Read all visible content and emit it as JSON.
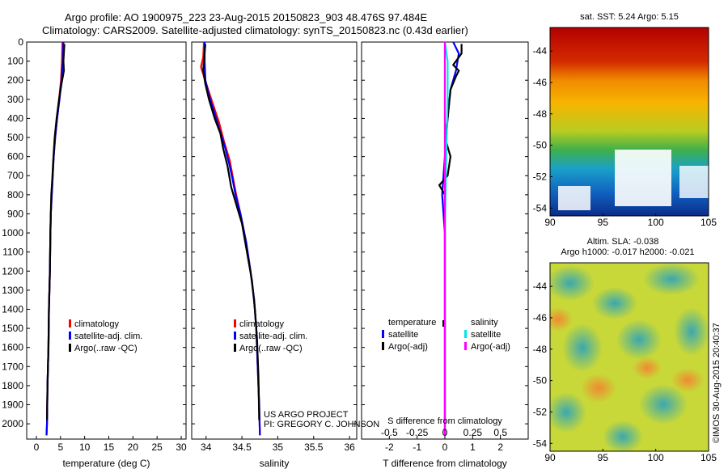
{
  "header": {
    "line1": "Argo profile: AO 1900975_223 23-Aug-2015 20150823_903 48.476S 97.484E",
    "line2": "Climatology: CARS2009. Satellite-adjusted climatology: synTS_20150823.nc (0.43d earlier)"
  },
  "project": {
    "line1": "US ARGO PROJECT",
    "line2": "PI: GREGORY C. JOHNSON"
  },
  "stamp": "©IMOS 30-Aug-2015 20:40:37",
  "colors": {
    "climatology": "#ff0000",
    "satellite_adj": "#0000ff",
    "argo": "#000000",
    "salinity_satellite": "#00e5e5",
    "salinity_argo": "#ff00ff"
  },
  "chart_data": [
    {
      "type": "line",
      "id": "temperature",
      "xlabel": "temperature (deg C)",
      "xlim": [
        -2,
        31
      ],
      "xticks": [
        0,
        5,
        10,
        15,
        20,
        25,
        30
      ],
      "ylim": [
        2080,
        0
      ],
      "yticks": [
        0,
        100,
        200,
        300,
        400,
        500,
        600,
        700,
        800,
        900,
        1000,
        1100,
        1200,
        1300,
        1400,
        1500,
        1600,
        1700,
        1800,
        1900,
        2000
      ],
      "legend": [
        "climatology",
        "satellite-adj. clim.",
        "Argo(..raw -QC)"
      ],
      "series": [
        {
          "name": "climatology",
          "color": "#ff0000",
          "points": [
            [
              5.4,
              0
            ],
            [
              5.3,
              100
            ],
            [
              5.1,
              200
            ],
            [
              4.7,
              300
            ],
            [
              4.3,
              400
            ],
            [
              3.9,
              500
            ],
            [
              3.6,
              600
            ],
            [
              3.4,
              700
            ],
            [
              3.2,
              800
            ],
            [
              3.0,
              900
            ],
            [
              2.9,
              1000
            ],
            [
              2.8,
              1200
            ],
            [
              2.6,
              1400
            ],
            [
              2.5,
              1600
            ],
            [
              2.3,
              1800
            ],
            [
              2.2,
              2000
            ],
            [
              2.1,
              2060
            ]
          ]
        },
        {
          "name": "satellite-adj. clim.",
          "color": "#0000ff",
          "points": [
            [
              5.6,
              0
            ],
            [
              5.5,
              100
            ],
            [
              5.2,
              200
            ],
            [
              4.8,
              300
            ],
            [
              4.3,
              400
            ],
            [
              3.9,
              500
            ],
            [
              3.6,
              600
            ],
            [
              3.4,
              700
            ],
            [
              3.2,
              800
            ],
            [
              3.0,
              900
            ],
            [
              2.9,
              1000
            ],
            [
              2.8,
              1200
            ],
            [
              2.6,
              1400
            ],
            [
              2.5,
              1600
            ],
            [
              2.3,
              1800
            ],
            [
              2.2,
              2000
            ],
            [
              2.1,
              2060
            ]
          ]
        },
        {
          "name": "Argo(..raw -QC)",
          "color": "#000000",
          "points": [
            [
              5.8,
              10
            ],
            [
              5.6,
              100
            ],
            [
              5.7,
              150
            ],
            [
              5.2,
              220
            ],
            [
              4.7,
              300
            ],
            [
              4.2,
              400
            ],
            [
              3.8,
              500
            ],
            [
              3.5,
              620
            ],
            [
              3.3,
              720
            ],
            [
              3.1,
              800
            ],
            [
              3.0,
              900
            ],
            [
              2.9,
              1000
            ],
            [
              2.8,
              1200
            ],
            [
              2.6,
              1400
            ],
            [
              2.5,
              1600
            ],
            [
              2.3,
              1800
            ],
            [
              2.2,
              1980
            ]
          ]
        }
      ]
    },
    {
      "type": "line",
      "id": "salinity",
      "xlabel": "salinity",
      "xlim": [
        33.8,
        36.1
      ],
      "xticks": [
        34,
        34.5,
        35,
        35.5,
        36
      ],
      "xticklabels": [
        "34",
        "34.5",
        "35",
        "35.5",
        "36"
      ],
      "ylim": [
        2080,
        0
      ],
      "legend": [
        "climatology",
        "satellite-adj. clim.",
        "Argo(..raw -QC)"
      ],
      "series": [
        {
          "name": "climatology",
          "color": "#ff0000",
          "points": [
            [
              33.97,
              0
            ],
            [
              33.96,
              80
            ],
            [
              33.93,
              130
            ],
            [
              33.97,
              180
            ],
            [
              34.03,
              250
            ],
            [
              34.1,
              330
            ],
            [
              34.18,
              420
            ],
            [
              34.25,
              520
            ],
            [
              34.33,
              620
            ],
            [
              34.38,
              720
            ],
            [
              34.42,
              800
            ],
            [
              34.48,
              900
            ],
            [
              34.56,
              1050
            ],
            [
              34.62,
              1200
            ],
            [
              34.67,
              1350
            ],
            [
              34.7,
              1500
            ],
            [
              34.72,
              1700
            ],
            [
              34.74,
              1900
            ],
            [
              34.75,
              2060
            ]
          ]
        },
        {
          "name": "satellite-adj. clim.",
          "color": "#0000ff",
          "points": [
            [
              33.98,
              0
            ],
            [
              33.98,
              100
            ],
            [
              33.99,
              200
            ],
            [
              34.04,
              280
            ],
            [
              34.1,
              350
            ],
            [
              34.18,
              450
            ],
            [
              34.27,
              560
            ],
            [
              34.33,
              650
            ],
            [
              34.37,
              720
            ],
            [
              34.41,
              800
            ],
            [
              34.48,
              900
            ],
            [
              34.56,
              1050
            ],
            [
              34.62,
              1200
            ],
            [
              34.67,
              1350
            ],
            [
              34.7,
              1500
            ],
            [
              34.72,
              1700
            ],
            [
              34.74,
              1900
            ],
            [
              34.75,
              2060
            ]
          ]
        },
        {
          "name": "Argo(..raw -QC)",
          "color": "#000000",
          "points": [
            [
              33.99,
              10
            ],
            [
              33.97,
              100
            ],
            [
              33.96,
              150
            ],
            [
              33.99,
              220
            ],
            [
              34.04,
              300
            ],
            [
              34.12,
              400
            ],
            [
              34.2,
              480
            ],
            [
              34.24,
              560
            ],
            [
              34.3,
              650
            ],
            [
              34.35,
              760
            ],
            [
              34.42,
              850
            ],
            [
              34.5,
              950
            ],
            [
              34.57,
              1100
            ],
            [
              34.64,
              1250
            ],
            [
              34.68,
              1400
            ],
            [
              34.71,
              1550
            ],
            [
              34.73,
              1750
            ],
            [
              34.74,
              1980
            ]
          ]
        }
      ]
    },
    {
      "type": "line",
      "id": "difference",
      "xlabel": "T difference from climatology",
      "xlabel_top": "S difference from climatology",
      "xlim": [
        -3,
        3
      ],
      "xticks": [
        -2,
        -1,
        0,
        1,
        2
      ],
      "xticks_top_labels": [
        "-0.5",
        "-0.25",
        "0",
        "0.25",
        "0.5"
      ],
      "ylim": [
        2080,
        0
      ],
      "legend_left_title": "temperature",
      "legend_right_title": "salinity",
      "legend_left": [
        "satellite",
        "Argo(-adj)"
      ],
      "legend_right": [
        "satellite",
        "Argo(-adj)"
      ],
      "series": [
        {
          "name": "temperature satellite",
          "color": "#0000ff",
          "points": [
            [
              0.3,
              0
            ],
            [
              0.5,
              60
            ],
            [
              0.4,
              150
            ],
            [
              0.2,
              250
            ],
            [
              0.1,
              400
            ],
            [
              0.0,
              600
            ],
            [
              -0.1,
              800
            ],
            [
              0.0,
              1000
            ],
            [
              0.0,
              1400
            ],
            [
              0.0,
              2060
            ]
          ]
        },
        {
          "name": "temperature Argo(-adj)",
          "color": "#000000",
          "points": [
            [
              0.6,
              10
            ],
            [
              0.6,
              60
            ],
            [
              0.3,
              120
            ],
            [
              0.5,
              150
            ],
            [
              0.4,
              180
            ],
            [
              0.2,
              250
            ],
            [
              0.1,
              400
            ],
            [
              0.0,
              500
            ],
            [
              0.2,
              600
            ],
            [
              0.1,
              700
            ],
            [
              -0.2,
              750
            ],
            [
              0.0,
              800
            ],
            [
              0.0,
              1000
            ],
            [
              0.0,
              1400
            ],
            [
              0.0,
              1980
            ]
          ]
        },
        {
          "name": "salinity satellite",
          "color": "#00e5e5",
          "points": [
            [
              0.0,
              0
            ],
            [
              0.1,
              100
            ],
            [
              0.1,
              300
            ],
            [
              0.05,
              600
            ],
            [
              0.0,
              1000
            ],
            [
              0.0,
              1500
            ],
            [
              0.0,
              2060
            ]
          ]
        },
        {
          "name": "salinity Argo(-adj)",
          "color": "#ff00ff",
          "points": [
            [
              0.0,
              0
            ],
            [
              0.0,
              300
            ],
            [
              0.0,
              700
            ],
            [
              0.0,
              1200
            ],
            [
              0.0,
              2060
            ]
          ]
        }
      ]
    },
    {
      "type": "heatmap",
      "id": "sst-map",
      "title": "sat. SST: 5.24 Argo: 5.15",
      "xlim": [
        90,
        105
      ],
      "ylim": [
        -54.5,
        -42.5
      ],
      "xticks": [
        90,
        95,
        100,
        105
      ],
      "yticks": [
        -44,
        -46,
        -48,
        -50,
        -52,
        -54
      ]
    },
    {
      "type": "heatmap",
      "id": "sla-map",
      "title": "Altim. SLA: -0.038",
      "subtitle": "Argo h1000: -0.017 h2000: -0.021",
      "xlim": [
        90,
        105
      ],
      "ylim": [
        -54.5,
        -42.5
      ],
      "xticks": [
        90,
        95,
        100,
        105
      ],
      "yticks": [
        -44,
        -46,
        -48,
        -50,
        -52,
        -54
      ]
    }
  ]
}
